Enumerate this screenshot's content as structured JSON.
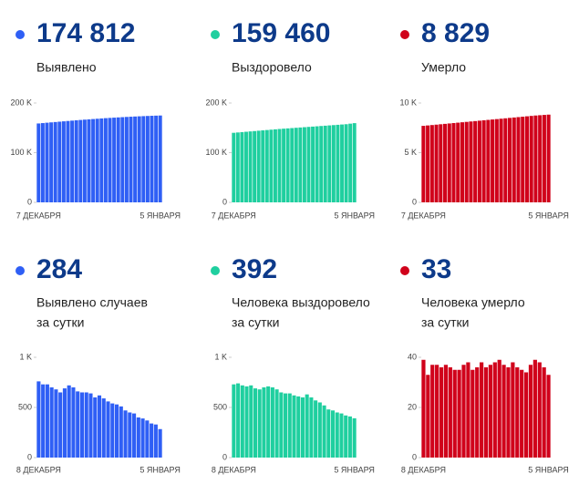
{
  "chart_data": [
    {
      "type": "bar",
      "headline": "174 812",
      "label_lines": [
        "Выявлено"
      ],
      "color": "#2f5ff5",
      "categories": [
        "7 ДЕКАБРЯ",
        null,
        null,
        null,
        null,
        null,
        null,
        null,
        null,
        null,
        null,
        null,
        null,
        null,
        null,
        null,
        null,
        null,
        null,
        null,
        null,
        null,
        null,
        null,
        null,
        null,
        null,
        null,
        null,
        "5 ЯНВАРЯ"
      ],
      "values": [
        158800,
        159550,
        160300,
        161000,
        161700,
        162400,
        163100,
        163800,
        164500,
        165200,
        165850,
        166500,
        167100,
        167700,
        168300,
        168900,
        169500,
        170000,
        170500,
        171000,
        171500,
        171950,
        172400,
        172800,
        173200,
        173550,
        173900,
        174250,
        174550,
        174812
      ],
      "ylim": [
        0,
        200000
      ],
      "yticks": [
        0,
        {
          "value": 100000,
          "label": "100 K"
        },
        {
          "value": 200000,
          "label": "200 K"
        }
      ]
    },
    {
      "type": "bar",
      "headline": "159 460",
      "label_lines": [
        "Выздоровело"
      ],
      "color": "#1fcf9f",
      "categories": [
        "7 ДЕКАБРЯ",
        null,
        null,
        null,
        null,
        null,
        null,
        null,
        null,
        null,
        null,
        null,
        null,
        null,
        null,
        null,
        null,
        null,
        null,
        null,
        null,
        null,
        null,
        null,
        null,
        null,
        null,
        null,
        null,
        "5 ЯНВАРЯ"
      ],
      "values": [
        140000,
        140700,
        141400,
        142100,
        142800,
        143500,
        144200,
        144900,
        145600,
        146300,
        147000,
        147700,
        148300,
        148900,
        149500,
        150100,
        150700,
        151300,
        151900,
        152500,
        153100,
        153700,
        154300,
        154900,
        155500,
        156100,
        156700,
        157300,
        158400,
        159460
      ],
      "ylim": [
        0,
        200000
      ],
      "yticks": [
        0,
        {
          "value": 100000,
          "label": "100 K"
        },
        {
          "value": 200000,
          "label": "200 K"
        }
      ]
    },
    {
      "type": "bar",
      "headline": "8 829",
      "label_lines": [
        "Умерло"
      ],
      "color": "#d0021b",
      "categories": [
        "7 ДЕКАБРЯ",
        null,
        null,
        null,
        null,
        null,
        null,
        null,
        null,
        null,
        null,
        null,
        null,
        null,
        null,
        null,
        null,
        null,
        null,
        null,
        null,
        null,
        null,
        null,
        null,
        null,
        null,
        null,
        null,
        "5 ЯНВАРЯ"
      ],
      "values": [
        7700,
        7740,
        7780,
        7820,
        7860,
        7900,
        7940,
        7980,
        8020,
        8060,
        8100,
        8140,
        8180,
        8220,
        8260,
        8300,
        8340,
        8380,
        8420,
        8460,
        8500,
        8540,
        8580,
        8620,
        8660,
        8700,
        8740,
        8770,
        8800,
        8829
      ],
      "ylim": [
        0,
        10000
      ],
      "yticks": [
        0,
        {
          "value": 5000,
          "label": "5 K"
        },
        {
          "value": 10000,
          "label": "10 K"
        }
      ]
    },
    {
      "type": "bar",
      "headline": "284",
      "label_lines": [
        "Выявлено случаев",
        "за сутки"
      ],
      "color": "#2f5ff5",
      "categories": [
        "8 ДЕКАБРЯ",
        null,
        null,
        null,
        null,
        null,
        null,
        null,
        null,
        null,
        null,
        null,
        null,
        null,
        null,
        null,
        null,
        null,
        null,
        null,
        null,
        null,
        null,
        null,
        null,
        null,
        null,
        null,
        "5 ЯНВАРЯ"
      ],
      "values": [
        760,
        730,
        730,
        700,
        680,
        650,
        690,
        720,
        700,
        660,
        650,
        650,
        640,
        600,
        620,
        590,
        560,
        540,
        530,
        510,
        470,
        450,
        440,
        400,
        390,
        370,
        340,
        330,
        284
      ],
      "ylim": [
        0,
        1000
      ],
      "yticks": [
        0,
        500,
        {
          "value": 1000,
          "label": "1 K"
        }
      ]
    },
    {
      "type": "bar",
      "headline": "392",
      "label_lines": [
        "Человека выздоровело",
        "за сутки"
      ],
      "color": "#1fcf9f",
      "categories": [
        "8 ДЕКАБРЯ",
        null,
        null,
        null,
        null,
        null,
        null,
        null,
        null,
        null,
        null,
        null,
        null,
        null,
        null,
        null,
        null,
        null,
        null,
        null,
        null,
        null,
        null,
        null,
        null,
        null,
        null,
        null,
        "5 ЯНВАРЯ"
      ],
      "values": [
        730,
        740,
        720,
        710,
        720,
        690,
        680,
        700,
        710,
        700,
        680,
        650,
        640,
        640,
        620,
        610,
        600,
        630,
        600,
        570,
        550,
        520,
        480,
        470,
        450,
        440,
        420,
        410,
        392
      ],
      "ylim": [
        0,
        1000
      ],
      "yticks": [
        0,
        500,
        {
          "value": 1000,
          "label": "1 K"
        }
      ]
    },
    {
      "type": "bar",
      "headline": "33",
      "label_lines": [
        "Человека умерло",
        "за сутки"
      ],
      "color": "#d0021b",
      "categories": [
        "8 ДЕКАБРЯ",
        null,
        null,
        null,
        null,
        null,
        null,
        null,
        null,
        null,
        null,
        null,
        null,
        null,
        null,
        null,
        null,
        null,
        null,
        null,
        null,
        null,
        null,
        null,
        null,
        null,
        null,
        null,
        "5 ЯНВАРЯ"
      ],
      "values": [
        39,
        33,
        37,
        37,
        36,
        37,
        36,
        35,
        35,
        37,
        38,
        35,
        36,
        38,
        36,
        37,
        38,
        39,
        37,
        36,
        38,
        36,
        35,
        34,
        37,
        39,
        38,
        36,
        33
      ],
      "ylim": [
        0,
        40
      ],
      "yticks": [
        0,
        20,
        40
      ]
    }
  ]
}
